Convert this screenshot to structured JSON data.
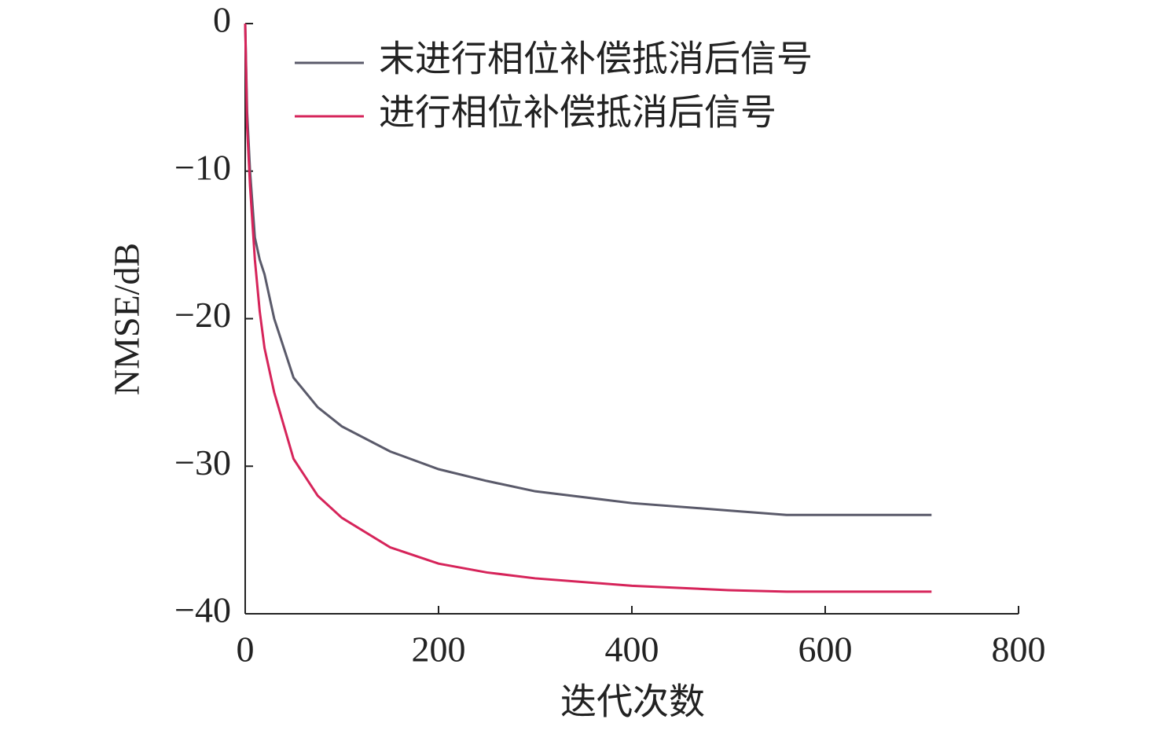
{
  "chart_data": {
    "type": "line",
    "x": [
      0,
      2,
      5,
      10,
      15,
      20,
      30,
      50,
      75,
      100,
      150,
      200,
      250,
      300,
      400,
      500,
      560,
      710
    ],
    "series": [
      {
        "name": "末进行相位补偿抵消后信号",
        "color": "#5a5a6a",
        "values": [
          0,
          -6,
          -10,
          -14.5,
          -16,
          -17,
          -20,
          -24,
          -26,
          -27.3,
          -29,
          -30.2,
          -31,
          -31.7,
          -32.5,
          -33,
          -33.3,
          -33.3
        ]
      },
      {
        "name": "进行相位补偿抵消后信号",
        "color": "#d6245a",
        "values": [
          0,
          -7,
          -11,
          -16,
          -19.5,
          -22,
          -25,
          -29.5,
          -32,
          -33.5,
          -35.5,
          -36.6,
          -37.2,
          -37.6,
          -38.1,
          -38.4,
          -38.5,
          -38.5
        ]
      }
    ],
    "xlabel": "迭代次数",
    "ylabel": "NMSE/dB",
    "xlim": [
      0,
      800
    ],
    "ylim": [
      -40,
      0
    ],
    "xticks": [
      0,
      200,
      400,
      600,
      800
    ],
    "yticks": [
      {
        "value": -40,
        "label": "−40"
      },
      {
        "value": -30,
        "label": "−30"
      },
      {
        "value": -20,
        "label": "−20"
      },
      {
        "value": -10,
        "label": "−10"
      },
      0
    ],
    "legend": "upper-left"
  }
}
